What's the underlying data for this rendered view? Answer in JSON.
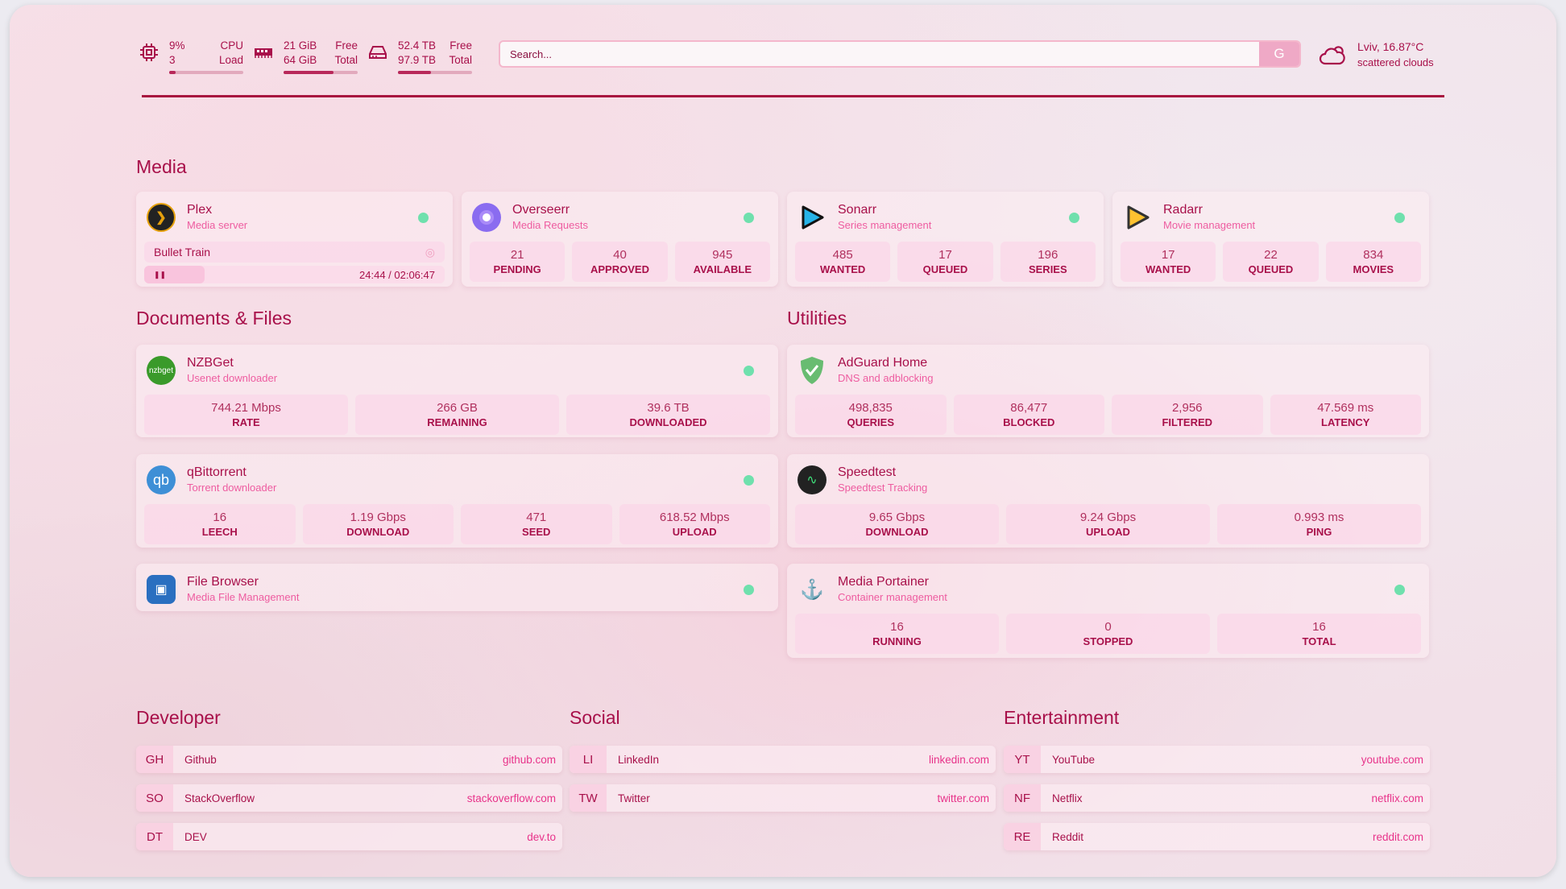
{
  "topbar": {
    "cpu": {
      "value": "9%",
      "cores": "3",
      "label1": "CPU",
      "label2": "Load",
      "usage_percent": 9
    },
    "ram": {
      "value": "21 GiB",
      "total": "64 GiB",
      "label1": "Free",
      "label2": "Total",
      "fill_percent": 67
    },
    "disk": {
      "value": "52.4 TB",
      "total": "97.9 TB",
      "label1": "Free",
      "label2": "Total",
      "fill_percent": 45
    },
    "search": {
      "placeholder": "Search...",
      "engine_label": "G"
    },
    "weather": {
      "location_temp": "Lviv, 16.87°C",
      "description": "scattered clouds"
    }
  },
  "sections": {
    "media": "Media",
    "documents": "Documents & Files",
    "utilities": "Utilities",
    "developer": "Developer",
    "social": "Social",
    "entertainment": "Entertainment"
  },
  "media": [
    {
      "name": "Plex",
      "desc": "Media server",
      "status": "online",
      "now_playing": {
        "title": "Bullet Train",
        "time": "24:44 / 02:06:47",
        "progress_percent": 20
      }
    },
    {
      "name": "Overseerr",
      "desc": "Media Requests",
      "status": "online",
      "stats": [
        {
          "v": "21",
          "l": "PENDING"
        },
        {
          "v": "40",
          "l": "APPROVED"
        },
        {
          "v": "945",
          "l": "AVAILABLE"
        }
      ]
    },
    {
      "name": "Sonarr",
      "desc": "Series management",
      "status": "online",
      "stats": [
        {
          "v": "485",
          "l": "WANTED"
        },
        {
          "v": "17",
          "l": "QUEUED"
        },
        {
          "v": "196",
          "l": "SERIES"
        }
      ]
    },
    {
      "name": "Radarr",
      "desc": "Movie management",
      "status": "online",
      "stats": [
        {
          "v": "17",
          "l": "WANTED"
        },
        {
          "v": "22",
          "l": "QUEUED"
        },
        {
          "v": "834",
          "l": "MOVIES"
        }
      ]
    }
  ],
  "documents": [
    {
      "name": "NZBGet",
      "desc": "Usenet downloader",
      "status": "online",
      "stats": [
        {
          "v": "744.21 Mbps",
          "l": "RATE"
        },
        {
          "v": "266 GB",
          "l": "REMAINING"
        },
        {
          "v": "39.6 TB",
          "l": "DOWNLOADED"
        }
      ]
    },
    {
      "name": "qBittorrent",
      "desc": "Torrent downloader",
      "status": "online",
      "stats": [
        {
          "v": "16",
          "l": "LEECH"
        },
        {
          "v": "1.19 Gbps",
          "l": "DOWNLOAD"
        },
        {
          "v": "471",
          "l": "SEED"
        },
        {
          "v": "618.52 Mbps",
          "l": "UPLOAD"
        }
      ]
    },
    {
      "name": "File Browser",
      "desc": "Media File Management",
      "status": "online",
      "stats": []
    }
  ],
  "utilities": [
    {
      "name": "AdGuard Home",
      "desc": "DNS and adblocking",
      "stats": [
        {
          "v": "498,835",
          "l": "QUERIES"
        },
        {
          "v": "86,477",
          "l": "BLOCKED"
        },
        {
          "v": "2,956",
          "l": "FILTERED"
        },
        {
          "v": "47.569 ms",
          "l": "LATENCY"
        }
      ]
    },
    {
      "name": "Speedtest",
      "desc": "Speedtest Tracking",
      "stats": [
        {
          "v": "9.65 Gbps",
          "l": "DOWNLOAD"
        },
        {
          "v": "9.24 Gbps",
          "l": "UPLOAD"
        },
        {
          "v": "0.993 ms",
          "l": "PING"
        }
      ]
    },
    {
      "name": "Media Portainer",
      "desc": "Container management",
      "status": "online",
      "stats": [
        {
          "v": "16",
          "l": "RUNNING"
        },
        {
          "v": "0",
          "l": "STOPPED"
        },
        {
          "v": "16",
          "l": "TOTAL"
        }
      ]
    }
  ],
  "bookmarks": {
    "developer": [
      {
        "abbr": "GH",
        "name": "Github",
        "url": "github.com"
      },
      {
        "abbr": "SO",
        "name": "StackOverflow",
        "url": "stackoverflow.com"
      },
      {
        "abbr": "DT",
        "name": "DEV",
        "url": "dev.to"
      }
    ],
    "social": [
      {
        "abbr": "LI",
        "name": "LinkedIn",
        "url": "linkedin.com"
      },
      {
        "abbr": "TW",
        "name": "Twitter",
        "url": "twitter.com"
      }
    ],
    "entertainment": [
      {
        "abbr": "YT",
        "name": "YouTube",
        "url": "youtube.com"
      },
      {
        "abbr": "NF",
        "name": "Netflix",
        "url": "netflix.com"
      },
      {
        "abbr": "RE",
        "name": "Reddit",
        "url": "reddit.com"
      }
    ]
  },
  "colors": {
    "accent": "#a8104a",
    "subtitle": "#ee5ca0",
    "status_online": "#6fe0ad"
  },
  "icons": {
    "media": [
      "plex-icon",
      "overseerr-icon",
      "sonarr-icon",
      "radarr-icon"
    ],
    "documents": [
      "nzbget-icon",
      "qbittorrent-icon",
      "filebrowser-icon"
    ],
    "utilities": [
      "adguard-icon",
      "speedtest-icon",
      "portainer-icon"
    ]
  }
}
